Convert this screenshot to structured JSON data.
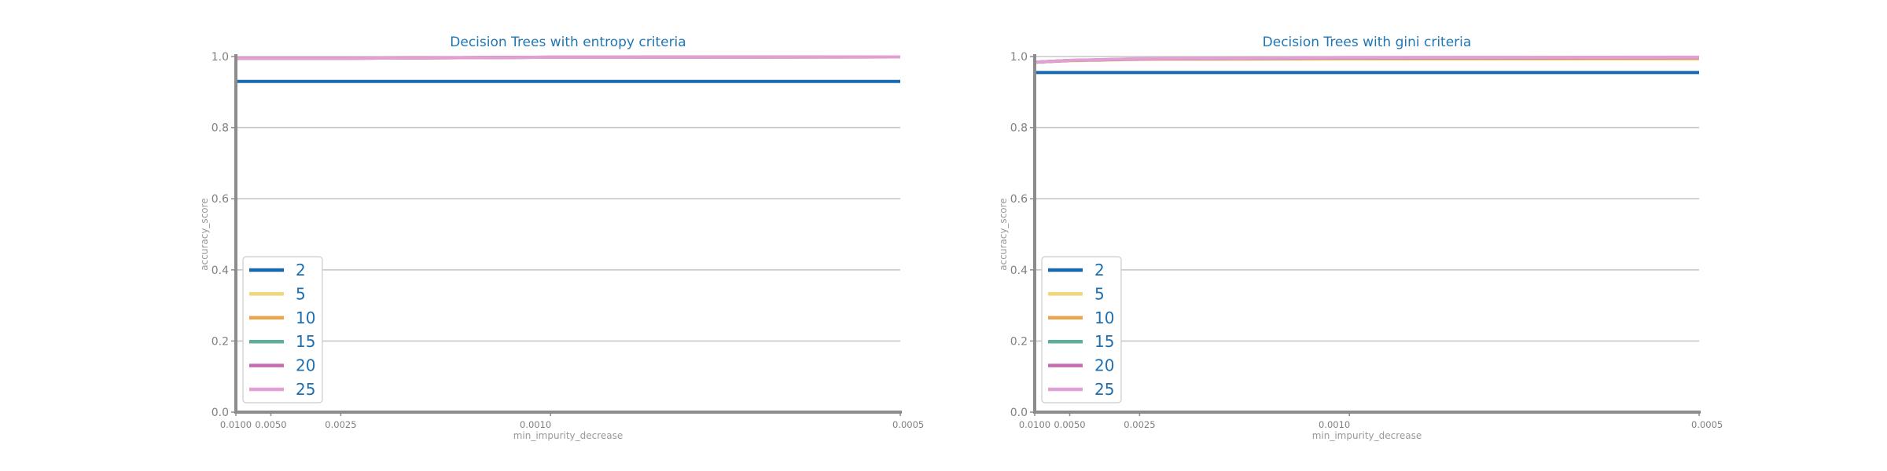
{
  "chart_data": [
    {
      "type": "line",
      "title": "Decision Trees with entropy criteria",
      "xlabel": "min_impurity_decrease",
      "ylabel": "accuracy_score",
      "x": [
        0.01,
        0.005,
        0.0025,
        0.001,
        0.0005
      ],
      "x_tick_labels": [
        "0.0100",
        "0.0050",
        "0.0025",
        "0.0010",
        "0.0005"
      ],
      "y_ticks": [
        "0.0",
        "0.2",
        "0.4",
        "0.6",
        "0.8",
        "1.0"
      ],
      "ylim": [
        0,
        1
      ],
      "x_scale": "reciprocal",
      "grid": "horizontal",
      "legend_position": "lower-left",
      "series": [
        {
          "name": "2",
          "color": "#1868ae",
          "values": [
            0.93,
            0.93,
            0.93,
            0.93,
            0.93
          ]
        },
        {
          "name": "5",
          "color": "#f1d779",
          "values": [
            0.995,
            0.995,
            0.995,
            0.998,
            0.999
          ]
        },
        {
          "name": "10",
          "color": "#eba54f",
          "values": [
            0.995,
            0.995,
            0.995,
            0.998,
            0.999
          ]
        },
        {
          "name": "15",
          "color": "#5fae9c",
          "values": [
            0.995,
            0.995,
            0.995,
            0.998,
            0.999
          ]
        },
        {
          "name": "20",
          "color": "#c46ead",
          "values": [
            0.995,
            0.995,
            0.995,
            0.998,
            0.999
          ]
        },
        {
          "name": "25",
          "color": "#e19fd4",
          "values": [
            0.995,
            0.995,
            0.995,
            0.998,
            0.999
          ]
        }
      ]
    },
    {
      "type": "line",
      "title": "Decision Trees with gini criteria",
      "xlabel": "min_impurity_decrease",
      "ylabel": "accuracy_score",
      "x": [
        0.01,
        0.005,
        0.0025,
        0.001,
        0.0005
      ],
      "x_tick_labels": [
        "0.0100",
        "0.0050",
        "0.0025",
        "0.0010",
        "0.0005"
      ],
      "y_ticks": [
        "0.0",
        "0.2",
        "0.4",
        "0.6",
        "0.8",
        "1.0"
      ],
      "ylim": [
        0,
        1
      ],
      "x_scale": "reciprocal",
      "grid": "horizontal",
      "legend_position": "lower-left",
      "series": [
        {
          "name": "2",
          "color": "#1868ae",
          "values": [
            0.955,
            0.955,
            0.955,
            0.955,
            0.955
          ]
        },
        {
          "name": "5",
          "color": "#f1d779",
          "values": [
            0.984,
            0.988,
            0.992,
            0.993,
            0.993
          ]
        },
        {
          "name": "10",
          "color": "#eba54f",
          "values": [
            0.984,
            0.989,
            0.993,
            0.995,
            0.996
          ]
        },
        {
          "name": "15",
          "color": "#5fae9c",
          "values": [
            0.984,
            0.989,
            0.993,
            0.996,
            0.997
          ]
        },
        {
          "name": "20",
          "color": "#c46ead",
          "values": [
            0.984,
            0.989,
            0.993,
            0.996,
            0.997
          ]
        },
        {
          "name": "25",
          "color": "#e19fd4",
          "values": [
            0.984,
            0.989,
            0.994,
            0.997,
            0.998
          ]
        }
      ]
    }
  ]
}
